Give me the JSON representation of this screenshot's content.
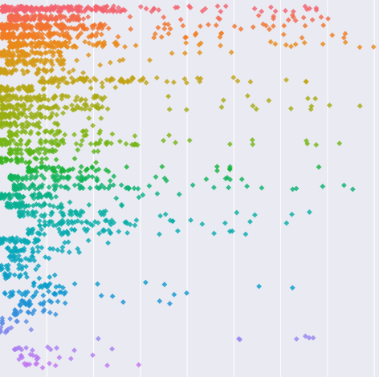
{
  "chart_data": {
    "type": "scatter",
    "orientation": "horizontal-strip",
    "title": "",
    "xlabel": "",
    "ylabel": "",
    "grid": true,
    "legend": "none",
    "background": "#EAEAF2",
    "gridline_color": "#FFFFFF",
    "x_gridlines": [
      1,
      2,
      3,
      4,
      5,
      6,
      7,
      8
    ],
    "xlim": [
      0,
      8.1
    ],
    "ylim": [
      -0.5,
      41.8
    ],
    "marker": "diamond",
    "series": [
      {
        "row": 0,
        "color": "#F3646E",
        "x_min": 0.05,
        "x_dense_end": 2.6,
        "x_max": 8.0,
        "count": 170,
        "sparse": 28,
        "row_edge": 0.85
      },
      {
        "row": 1,
        "color": "#F36B4D",
        "x_min": 0.2,
        "x_dense_end": 1.7,
        "x_max": 7.6,
        "count": 120,
        "sparse": 18
      },
      {
        "row": 2,
        "color": "#F27530",
        "x_min": 0.0,
        "x_dense_end": 2.2,
        "x_max": 7.0,
        "count": 130,
        "sparse": 22
      },
      {
        "row": 3,
        "color": "#F07E22",
        "x_min": 0.05,
        "x_dense_end": 2.1,
        "x_max": 7.5,
        "count": 115,
        "sparse": 18
      },
      {
        "row": 4,
        "color": "#E98A1A",
        "x_min": 0.2,
        "x_dense_end": 2.6,
        "x_max": 8.0,
        "count": 110,
        "sparse": 16
      },
      {
        "row": 5,
        "color": "#E0921A",
        "x_min": 0.0,
        "x_dense_end": 1.3,
        "x_max": 5.6,
        "count": 70,
        "sparse": 5
      },
      {
        "row": 6,
        "color": "#D69A18",
        "x_min": 0.15,
        "x_dense_end": 1.5,
        "x_max": 3.6,
        "count": 60,
        "sparse": 6
      },
      {
        "row": 7,
        "color": "#CB9E17",
        "x_min": 0.0,
        "x_dense_end": 1.2,
        "x_max": 2.7,
        "count": 40,
        "sparse": 4
      },
      {
        "row": 8,
        "color": "#C1A415",
        "x_min": 0.85,
        "x_dense_end": 3.2,
        "x_max": 7.3,
        "count": 70,
        "sparse": 14
      },
      {
        "row": 9,
        "color": "#B5A714",
        "x_min": 0.0,
        "x_dense_end": 1.0,
        "x_max": 2.5,
        "count": 40,
        "sparse": 4
      },
      {
        "row": 10,
        "color": "#ABAA14",
        "x_min": 0.0,
        "x_dense_end": 2.3,
        "x_max": 7.0,
        "count": 70,
        "sparse": 6
      },
      {
        "row": 11,
        "color": "#A2AC14",
        "x_min": 0.05,
        "x_dense_end": 2.6,
        "x_max": 7.9,
        "count": 70,
        "sparse": 10
      },
      {
        "row": 12,
        "color": "#98AE14",
        "x_min": 0.0,
        "x_dense_end": 1.2,
        "x_max": 2.4,
        "count": 60,
        "sparse": 4
      },
      {
        "row": 13,
        "color": "#8DB114",
        "x_min": 0.0,
        "x_dense_end": 1.0,
        "x_max": 2.0,
        "count": 35,
        "sparse": 4
      },
      {
        "row": 14,
        "color": "#81B414",
        "x_min": 0.2,
        "x_dense_end": 2.0,
        "x_max": 5.3,
        "count": 40,
        "sparse": 5
      },
      {
        "row": 15,
        "color": "#75B618",
        "x_min": 0.0,
        "x_dense_end": 3.0,
        "x_max": 8.1,
        "count": 70,
        "sparse": 10
      },
      {
        "row": 16,
        "color": "#60B41A",
        "x_min": 0.2,
        "x_dense_end": 1.3,
        "x_max": 2.2,
        "count": 40,
        "sparse": 3
      },
      {
        "row": 17,
        "color": "#3DB51E",
        "x_min": 0.0,
        "x_dense_end": 1.0,
        "x_max": 2.1,
        "count": 30,
        "sparse": 3
      },
      {
        "row": 18,
        "color": "#19B33A",
        "x_min": 0.6,
        "x_dense_end": 2.5,
        "x_max": 6.9,
        "count": 50,
        "sparse": 8
      },
      {
        "row": 19,
        "color": "#12B45A",
        "x_min": 0.2,
        "x_dense_end": 2.1,
        "x_max": 5.5,
        "count": 60,
        "sparse": 10
      },
      {
        "row": 20,
        "color": "#0DB274",
        "x_min": 0.3,
        "x_dense_end": 3.2,
        "x_max": 7.6,
        "count": 60,
        "sparse": 10
      },
      {
        "row": 21,
        "color": "#0BB186",
        "x_min": 0.0,
        "x_dense_end": 1.2,
        "x_max": 4.0,
        "count": 55,
        "sparse": 5
      },
      {
        "row": 22,
        "color": "#0AB096",
        "x_min": 0.15,
        "x_dense_end": 1.4,
        "x_max": 3.0,
        "count": 45,
        "sparse": 4
      },
      {
        "row": 23,
        "color": "#0AB0A2",
        "x_min": 0.4,
        "x_dense_end": 2.4,
        "x_max": 7.4,
        "count": 45,
        "sparse": 6
      },
      {
        "row": 24,
        "color": "#0AAEAA",
        "x_min": 0.8,
        "x_dense_end": 3.0,
        "x_max": 6.4,
        "count": 45,
        "sparse": 8
      },
      {
        "row": 25,
        "color": "#0AACB0",
        "x_min": 0.6,
        "x_dense_end": 2.8,
        "x_max": 5.6,
        "count": 40,
        "sparse": 6
      },
      {
        "row": 26,
        "color": "#09AAB5",
        "x_min": 0.0,
        "x_dense_end": 0.9,
        "x_max": 2.4,
        "count": 40,
        "sparse": 4
      },
      {
        "row": 27,
        "color": "#09A8B9",
        "x_min": 0.15,
        "x_dense_end": 1.4,
        "x_max": 2.0,
        "count": 30,
        "sparse": 3
      },
      {
        "row": 28,
        "color": "#0AA6BD",
        "x_min": 0.2,
        "x_dense_end": 0.8,
        "x_max": 1.1,
        "count": 18,
        "sparse": 2
      },
      {
        "row": 29,
        "color": "#0AA3C1",
        "x_min": 0.0,
        "x_dense_end": 0.6,
        "x_max": 0.9,
        "count": 14,
        "sparse": 2
      },
      {
        "row": 30,
        "color": "#0AA0C6",
        "x_min": 0.1,
        "x_dense_end": 0.9,
        "x_max": 1.4,
        "count": 16,
        "sparse": 2
      },
      {
        "row": 31,
        "color": "#0B9DCB",
        "x_min": 0.7,
        "x_dense_end": 1.6,
        "x_max": 8.0,
        "count": 16,
        "sparse": 5
      },
      {
        "row": 32,
        "color": "#1299D1",
        "x_min": 0.1,
        "x_dense_end": 1.6,
        "x_max": 4.0,
        "count": 25,
        "sparse": 4
      },
      {
        "row": 33,
        "color": "#1E94D6",
        "x_min": 0.4,
        "x_dense_end": 1.6,
        "x_max": 4.2,
        "count": 22,
        "sparse": 3
      },
      {
        "row": 34,
        "color": "#3590DC",
        "x_min": 0.3,
        "x_dense_end": 1.1,
        "x_max": 1.2,
        "count": 16,
        "sparse": 1
      },
      {
        "row": 35,
        "color": "#5B8EE4",
        "x_min": 0.0,
        "x_dense_end": 0.6,
        "x_max": 0.6,
        "count": 8,
        "sparse": 0
      },
      {
        "row": 36,
        "color": "#8289EC",
        "x_min": 0.0,
        "x_dense_end": 0.5,
        "x_max": 1.1,
        "count": 8,
        "sparse": 1
      },
      {
        "row": 37,
        "color": "#9A86F0",
        "x_min": 2.1,
        "x_dense_end": 2.1,
        "x_max": 7.5,
        "count": 1,
        "sparse": 6
      },
      {
        "row": 38,
        "color": "#A97FF2",
        "x_min": 0.3,
        "x_dense_end": 1.1,
        "x_max": 2.5,
        "count": 10,
        "sparse": 3
      },
      {
        "row": 39,
        "color": "#B77AF3",
        "x_min": 0.4,
        "x_dense_end": 1.5,
        "x_max": 2.3,
        "count": 10,
        "sparse": 2
      },
      {
        "row": 40,
        "color": "#C278F2",
        "x_min": 0.5,
        "x_dense_end": 1.6,
        "x_max": 3.0,
        "count": 10,
        "sparse": 2
      }
    ]
  }
}
